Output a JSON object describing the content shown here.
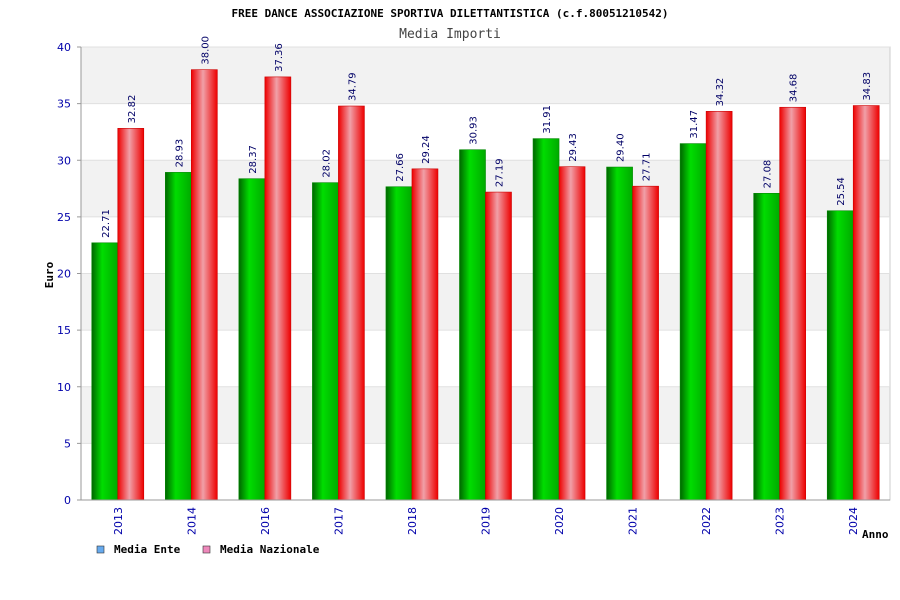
{
  "chart_data": {
    "type": "bar",
    "title": "FREE DANCE ASSOCIAZIONE SPORTIVA DILETTANTISTICA (c.f.80051210542)",
    "subtitle": "Media Importi",
    "xlabel": "Anno",
    "ylabel": "Euro",
    "ylim": [
      0,
      40
    ],
    "yticks": [
      0,
      5,
      10,
      15,
      20,
      25,
      30,
      35,
      40
    ],
    "categories": [
      "2013",
      "2014",
      "2016",
      "2017",
      "2018",
      "2019",
      "2020",
      "2021",
      "2022",
      "2023",
      "2024"
    ],
    "series": [
      {
        "name": "Media Ente",
        "values": [
          22.71,
          28.93,
          28.37,
          28.02,
          27.66,
          30.93,
          31.91,
          29.4,
          31.47,
          27.08,
          25.54
        ]
      },
      {
        "name": "Media Nazionale",
        "values": [
          32.82,
          38.0,
          37.36,
          34.79,
          29.24,
          27.19,
          29.43,
          27.71,
          34.32,
          34.68,
          34.83
        ]
      }
    ],
    "value_labels": [
      [
        "22.71",
        "28.93",
        "28.37",
        "28.02",
        "27.66",
        "30.93",
        "31.91",
        "29.40",
        "31.47",
        "27.08",
        "25.54"
      ],
      [
        "32.82",
        "38.00",
        "37.36",
        "34.79",
        "29.24",
        "27.19",
        "29.43",
        "27.71",
        "34.32",
        "34.68",
        "34.83"
      ]
    ],
    "grid": true,
    "legend_position": "bottom-left",
    "colors": {
      "series1": "#00cc00",
      "series2": "#ee1111",
      "legend1": "#66aaee",
      "legend2": "#ee88bb",
      "band": "#f2f2f2",
      "tick_text": "#0000aa",
      "value_text": "#000066"
    }
  }
}
